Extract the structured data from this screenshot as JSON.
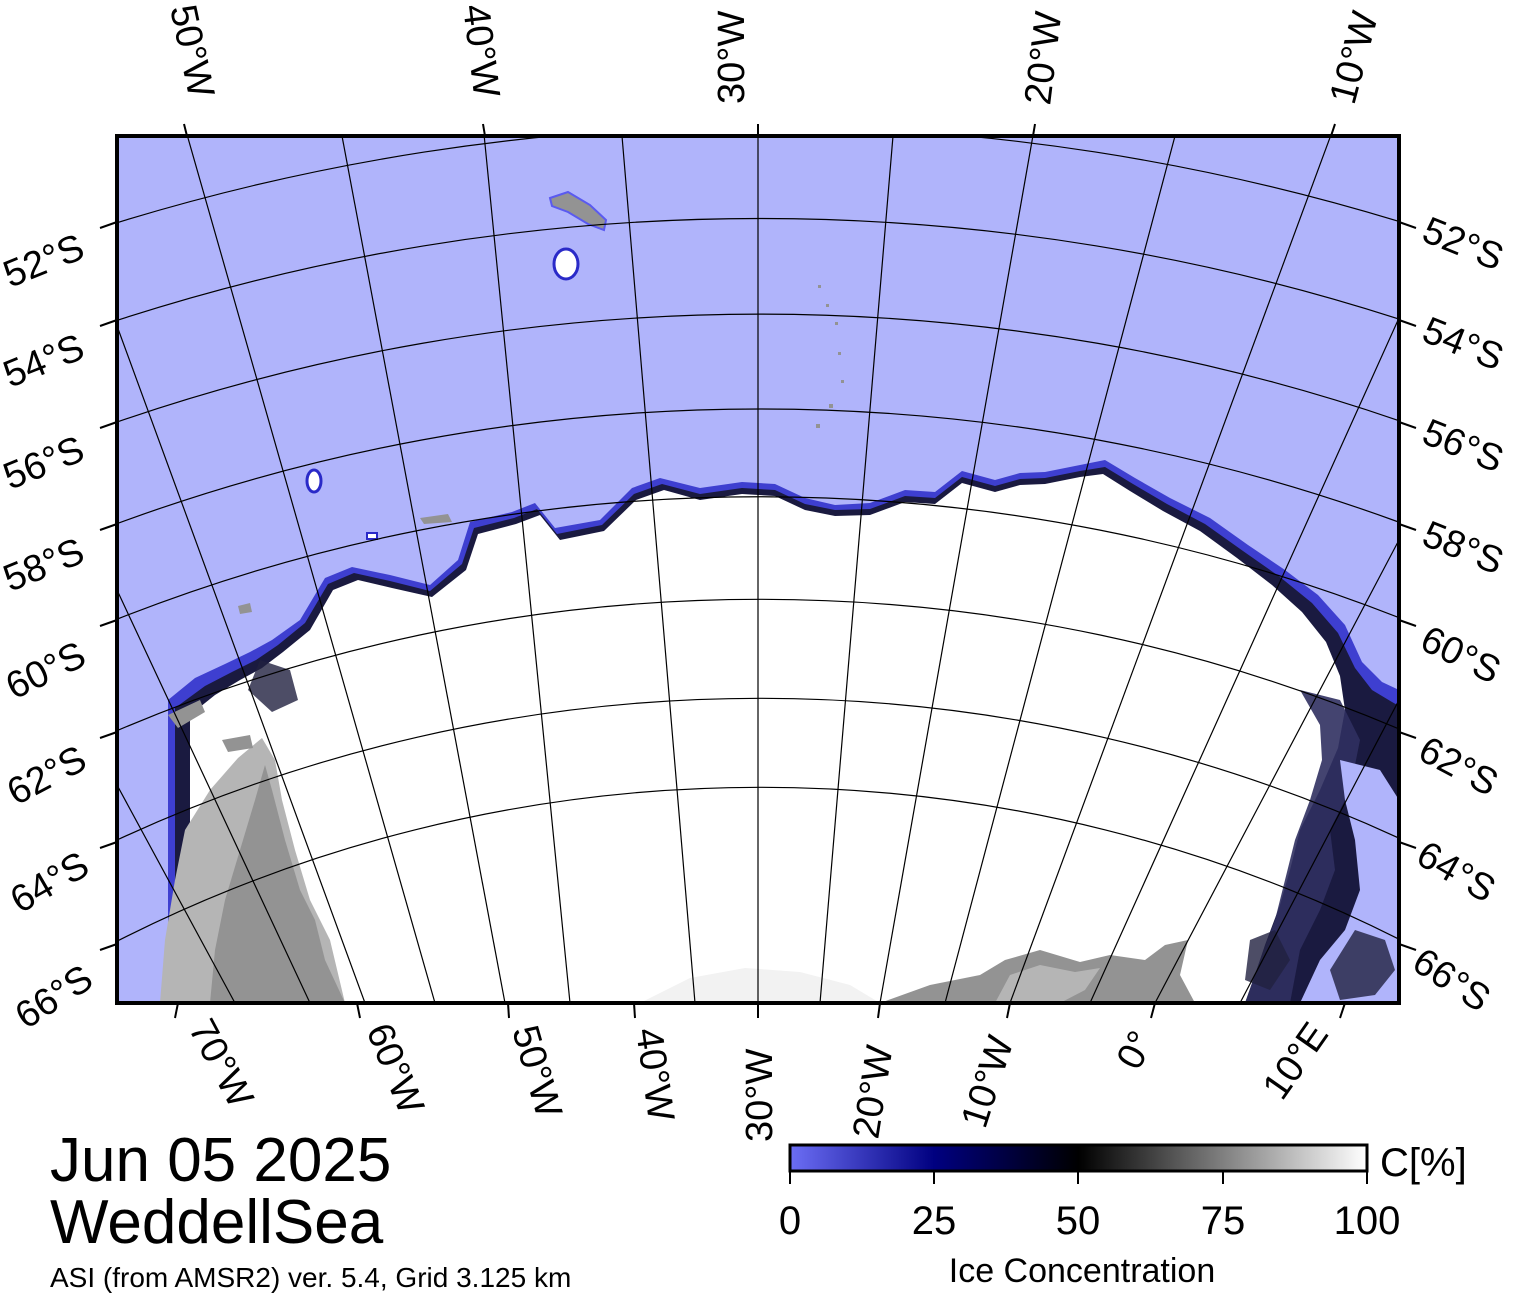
{
  "map": {
    "date": "Jun 05 2025",
    "region": "WeddellSea",
    "product": "ASI (from AMSR2) ver. 5.4,  Grid 3.125 km",
    "top_longitude_labels": [
      "50°W",
      "40°W",
      "30°W",
      "20°W",
      "10°W"
    ],
    "bottom_longitude_labels": [
      "70°W",
      "60°W",
      "50°W",
      "40°W",
      "30°W",
      "20°W",
      "10°W",
      "0°",
      "10°E"
    ],
    "left_latitude_labels": [
      "52°S",
      "54°S",
      "56°S",
      "58°S",
      "60°S",
      "62°S",
      "64°S",
      "66°S"
    ],
    "right_latitude_labels": [
      "52°S",
      "54°S",
      "56°S",
      "58°S",
      "60°S",
      "62°S",
      "64°S",
      "66°S"
    ],
    "colors": {
      "open_water": "#b0b4fb",
      "ice_full": "#ffffff",
      "land": "#939393",
      "land_light": "#b5b5b5",
      "frame": "#000000"
    }
  },
  "colorbar": {
    "unit": "C[%]",
    "title": "Ice Concentration",
    "ticks": [
      "0",
      "25",
      "50",
      "75",
      "100"
    ],
    "stops": [
      {
        "value": 0,
        "color": "#6c6ef5"
      },
      {
        "value": 25,
        "color": "#000080"
      },
      {
        "value": 50,
        "color": "#000000"
      },
      {
        "value": 100,
        "color": "#ffffff"
      }
    ]
  }
}
